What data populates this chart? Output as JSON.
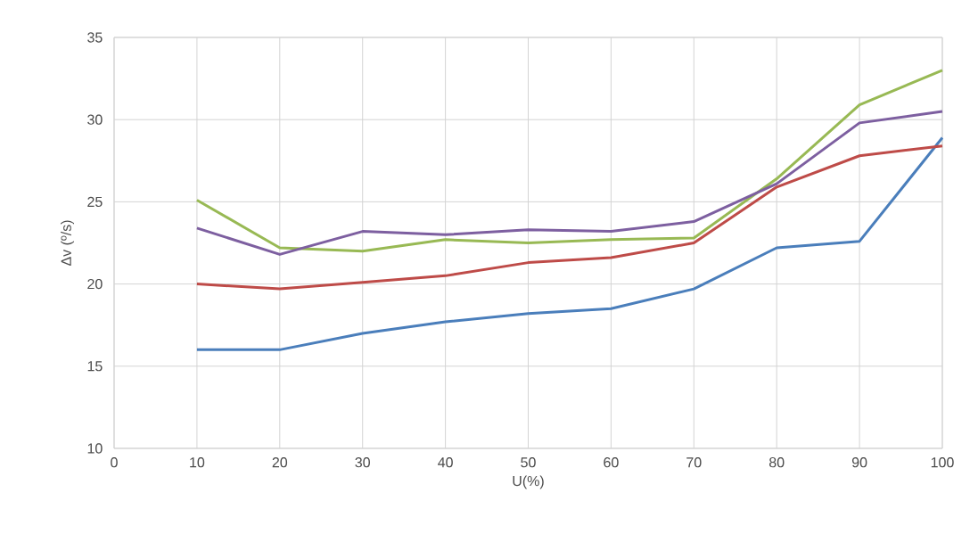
{
  "chart_data": {
    "type": "line",
    "xlabel": "U(%)",
    "ylabel": "Δv (º/s)",
    "x": [
      10,
      20,
      30,
      40,
      50,
      60,
      70,
      80,
      90,
      100
    ],
    "series": [
      {
        "color": "#4a7ebb",
        "values": [
          16,
          16,
          17,
          17.7,
          18.2,
          18.5,
          19.7,
          22.2,
          22.6,
          28.9
        ]
      },
      {
        "color": "#be4b48",
        "values": [
          20,
          19.7,
          20.1,
          20.5,
          21.3,
          21.6,
          22.5,
          25.9,
          27.8,
          28.4
        ]
      },
      {
        "color": "#98b954",
        "values": [
          25.1,
          22.2,
          22.0,
          22.7,
          22.5,
          22.7,
          22.8,
          26.4,
          30.9,
          33.0
        ]
      },
      {
        "color": "#7d5fa0",
        "values": [
          23.4,
          21.8,
          23.2,
          23.0,
          23.3,
          23.2,
          23.8,
          26.1,
          29.8,
          30.5
        ]
      }
    ],
    "xlim": [
      0,
      100
    ],
    "xticks": [
      0,
      10,
      20,
      30,
      40,
      50,
      60,
      70,
      80,
      90,
      100
    ],
    "ylim": [
      10,
      35
    ],
    "yticks": [
      10,
      15,
      20,
      25,
      30,
      35
    ],
    "grid": true,
    "marker": "none",
    "line_style": "solid"
  }
}
